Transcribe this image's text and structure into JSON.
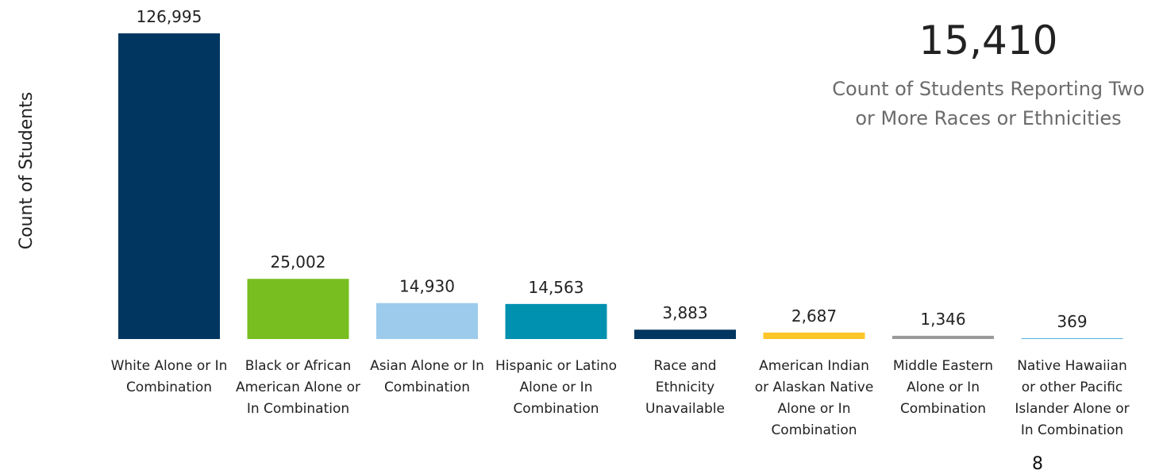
{
  "chart_data": {
    "type": "bar",
    "y_label": "Count of Students",
    "categories": [
      "White Alone or In Combination",
      "Black or African American Alone or In Combination",
      "Asian Alone or In Combination",
      "Hispanic or Latino Alone or In Combination",
      "Race and Ethnicity Unavailable",
      "American Indian or Alaskan Native Alone or In Combination",
      "Middle Eastern Alone or In Combination",
      "Native Hawaiian or other Pacific Islander Alone or In Combination"
    ],
    "values": [
      126995,
      25002,
      14930,
      14563,
      3883,
      2687,
      1346,
      369
    ],
    "value_labels": [
      "126,995",
      "25,002",
      "14,930",
      "14,563",
      "3,883",
      "2,687",
      "1,346",
      "369"
    ],
    "colors": [
      "#003660",
      "#78be20",
      "#9dcbec",
      "#0090b0",
      "#003660",
      "#ffc629",
      "#9a9a9a",
      "#5bb6e0"
    ],
    "ylim": [
      0,
      127000
    ],
    "annotation": {
      "value": "15,410",
      "text": "Count of Students Reporting Two or More Races or Ethnicities"
    }
  },
  "page_number": "8"
}
